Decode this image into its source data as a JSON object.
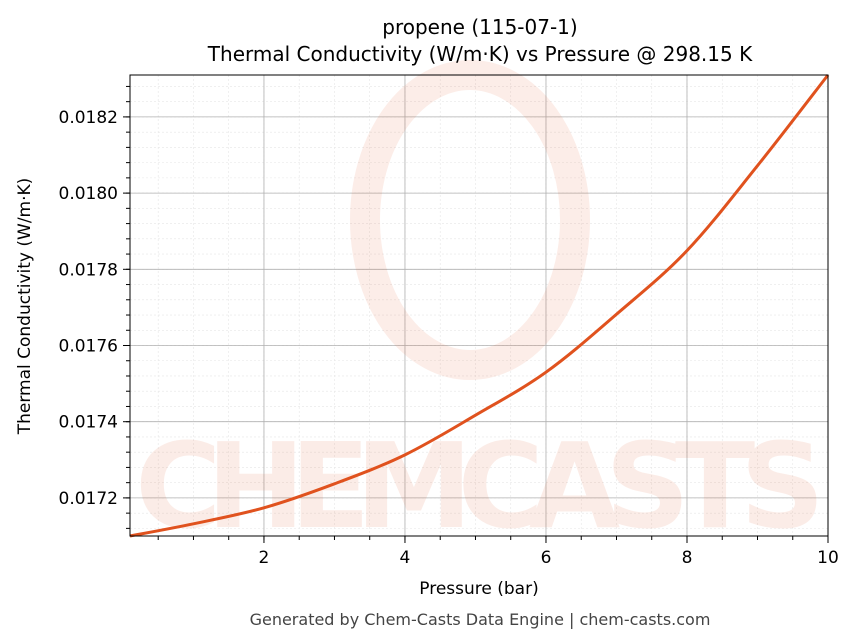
{
  "chart_data": {
    "type": "line",
    "title_line1": "propene (115-07-1)",
    "title_line2": "Thermal Conductivity (W/m·K) vs Pressure @ 298.15 K",
    "xlabel": "Pressure (bar)",
    "ylabel": "Thermal Conductivity (W/m·K)",
    "xlim": [
      0.1,
      10
    ],
    "ylim": [
      0.0171,
      0.01831
    ],
    "xticks": [
      2,
      4,
      6,
      8,
      10
    ],
    "xtick_labels": [
      "2",
      "4",
      "6",
      "8",
      "10"
    ],
    "yticks": [
      0.0172,
      0.0174,
      0.0176,
      0.0178,
      0.018,
      0.0182
    ],
    "ytick_labels": [
      "0.0172",
      "0.0174",
      "0.0176",
      "0.0178",
      "0.0180",
      "0.0182"
    ],
    "grid": true,
    "series": [
      {
        "name": "propene",
        "color": "#e0521e",
        "x": [
          0.1,
          1,
          2,
          3,
          4,
          5,
          6,
          7,
          8,
          9,
          10
        ],
        "y": [
          0.0171,
          0.017132,
          0.017174,
          0.017237,
          0.017313,
          0.017417,
          0.01753,
          0.017682,
          0.017849,
          0.018072,
          0.01831
        ]
      }
    ]
  },
  "watermark": "CHEMCASTS",
  "footer": "Generated by Chem-Casts Data Engine | chem-casts.com"
}
